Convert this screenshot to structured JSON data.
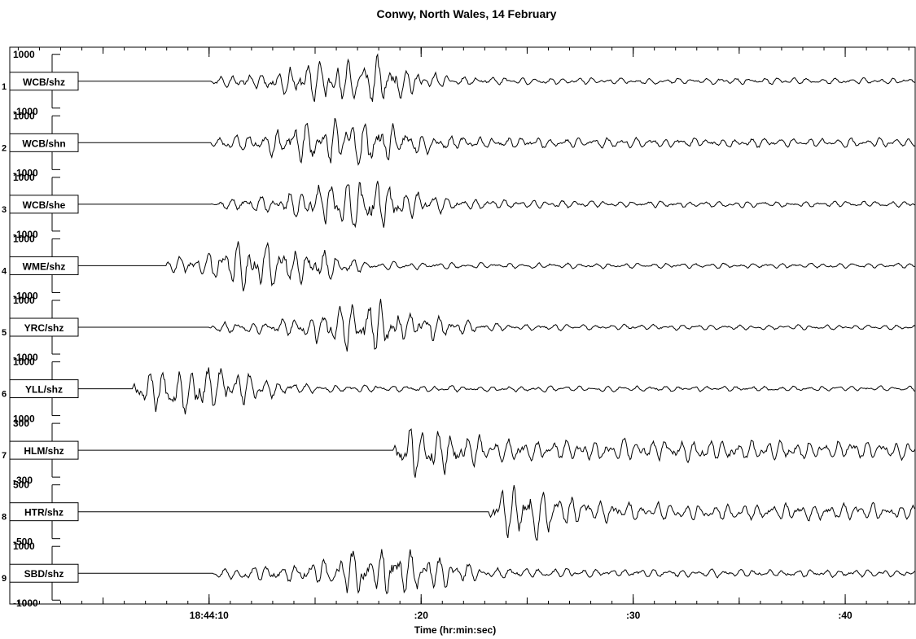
{
  "title": "Conwy, North Wales, 14 February",
  "chart_data": {
    "type": "line",
    "title": "Conwy, North Wales, 14 February",
    "xlabel": "Time (hr:min:sec)",
    "ylabel": "",
    "x_tick_labels": [
      "18:44:10",
      ":20",
      ":30",
      ":40"
    ],
    "x_ticks_seconds_after_18_44_00": [
      10,
      20,
      30,
      40
    ],
    "xlim_seconds_after_18_44_00": [
      0.6,
      43.3
    ],
    "grid": false,
    "series": [
      {
        "name": "WCB/shz",
        "index": "1",
        "scale_top": "1000",
        "scale_bottom": "-1000",
        "onset_s": 10.1,
        "peak_s": 16.9,
        "decay_s": 5.0,
        "noise": 0.12,
        "seed": 11
      },
      {
        "name": "WCB/shn",
        "index": "2",
        "scale_top": "1000",
        "scale_bottom": "-1000",
        "onset_s": 10.1,
        "peak_s": 16.8,
        "decay_s": 6.5,
        "noise": 0.18,
        "seed": 23
      },
      {
        "name": "WCB/she",
        "index": "3",
        "scale_top": "1000",
        "scale_bottom": "-1000",
        "onset_s": 10.1,
        "peak_s": 17.3,
        "decay_s": 6.0,
        "noise": 0.12,
        "seed": 37
      },
      {
        "name": "WME/shz",
        "index": "4",
        "scale_top": "1000",
        "scale_bottom": "-1000",
        "onset_s": 8.0,
        "peak_s": 13.2,
        "decay_s": 5.0,
        "noise": 0.1,
        "seed": 41
      },
      {
        "name": "YRC/shz",
        "index": "5",
        "scale_top": "1000",
        "scale_bottom": "-1000",
        "onset_s": 10.0,
        "peak_s": 18.0,
        "decay_s": 5.0,
        "noise": 0.1,
        "seed": 53
      },
      {
        "name": "YLL/shz",
        "index": "6",
        "scale_top": "1000",
        "scale_bottom": "1000",
        "onset_s": 6.4,
        "peak_s": 9.5,
        "decay_s": 8.0,
        "noise": 0.1,
        "seed": 67
      },
      {
        "name": "HLM/shz",
        "index": "7",
        "scale_top": "300",
        "scale_bottom": "-300",
        "onset_s": 18.7,
        "peak_s": 19.2,
        "decay_s": 30.0,
        "noise": 0.35,
        "seed": 79
      },
      {
        "name": "HTR/shz",
        "index": "8",
        "scale_top": "500",
        "scale_bottom": "-500",
        "onset_s": 23.2,
        "peak_s": 24.3,
        "decay_s": 30.0,
        "noise": 0.25,
        "seed": 83
      },
      {
        "name": "SBD/shz",
        "index": "9",
        "scale_top": "1000",
        "scale_bottom": "-1000",
        "onset_s": 10.2,
        "peak_s": 18.5,
        "decay_s": 6.0,
        "noise": 0.15,
        "seed": 97
      }
    ]
  }
}
